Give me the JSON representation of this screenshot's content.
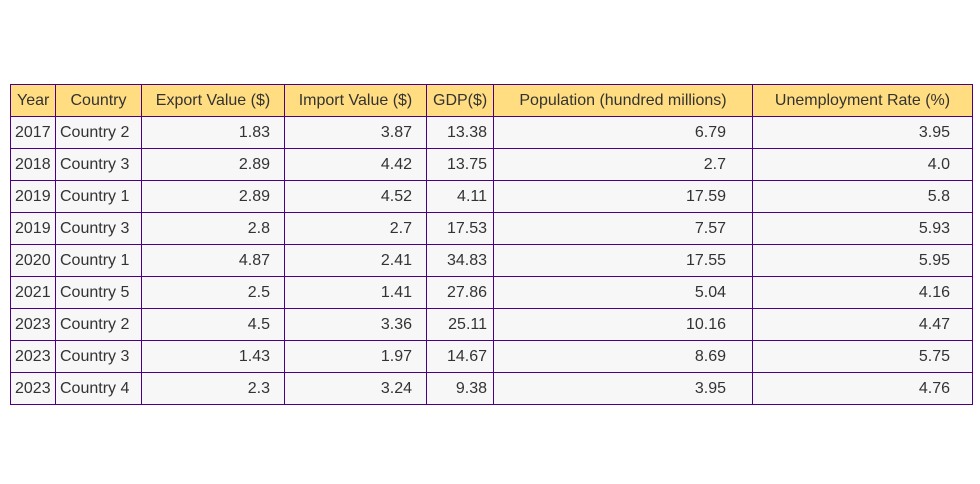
{
  "chart_data": {
    "type": "table",
    "columns": [
      "Year",
      "Country",
      "Export Value ($)",
      "Import Value ($)",
      "GDP($)",
      "Population (hundred millions)",
      "Unemployment Rate (%)"
    ],
    "rows": [
      [
        "2017",
        "Country 2",
        "1.83",
        "3.87",
        "13.38",
        "6.79",
        "3.95"
      ],
      [
        "2018",
        "Country 3",
        "2.89",
        "4.42",
        "13.75",
        "2.7",
        "4.0"
      ],
      [
        "2019",
        "Country 1",
        "2.89",
        "4.52",
        "4.11",
        "17.59",
        "5.8"
      ],
      [
        "2019",
        "Country 3",
        "2.8",
        "2.7",
        "17.53",
        "7.57",
        "5.93"
      ],
      [
        "2020",
        "Country 1",
        "4.87",
        "2.41",
        "34.83",
        "17.55",
        "5.95"
      ],
      [
        "2021",
        "Country 5",
        "2.5",
        "1.41",
        "27.86",
        "5.04",
        "4.16"
      ],
      [
        "2023",
        "Country 2",
        "4.5",
        "3.36",
        "25.11",
        "10.16",
        "4.47"
      ],
      [
        "2023",
        "Country 3",
        "1.43",
        "1.97",
        "14.67",
        "8.69",
        "5.75"
      ],
      [
        "2023",
        "Country 4",
        "2.3",
        "3.24",
        "9.38",
        "3.95",
        "4.76"
      ]
    ],
    "header_color": "#ffdd80",
    "cell_color": "#f7f7f7",
    "border_color": "#4b0082"
  }
}
